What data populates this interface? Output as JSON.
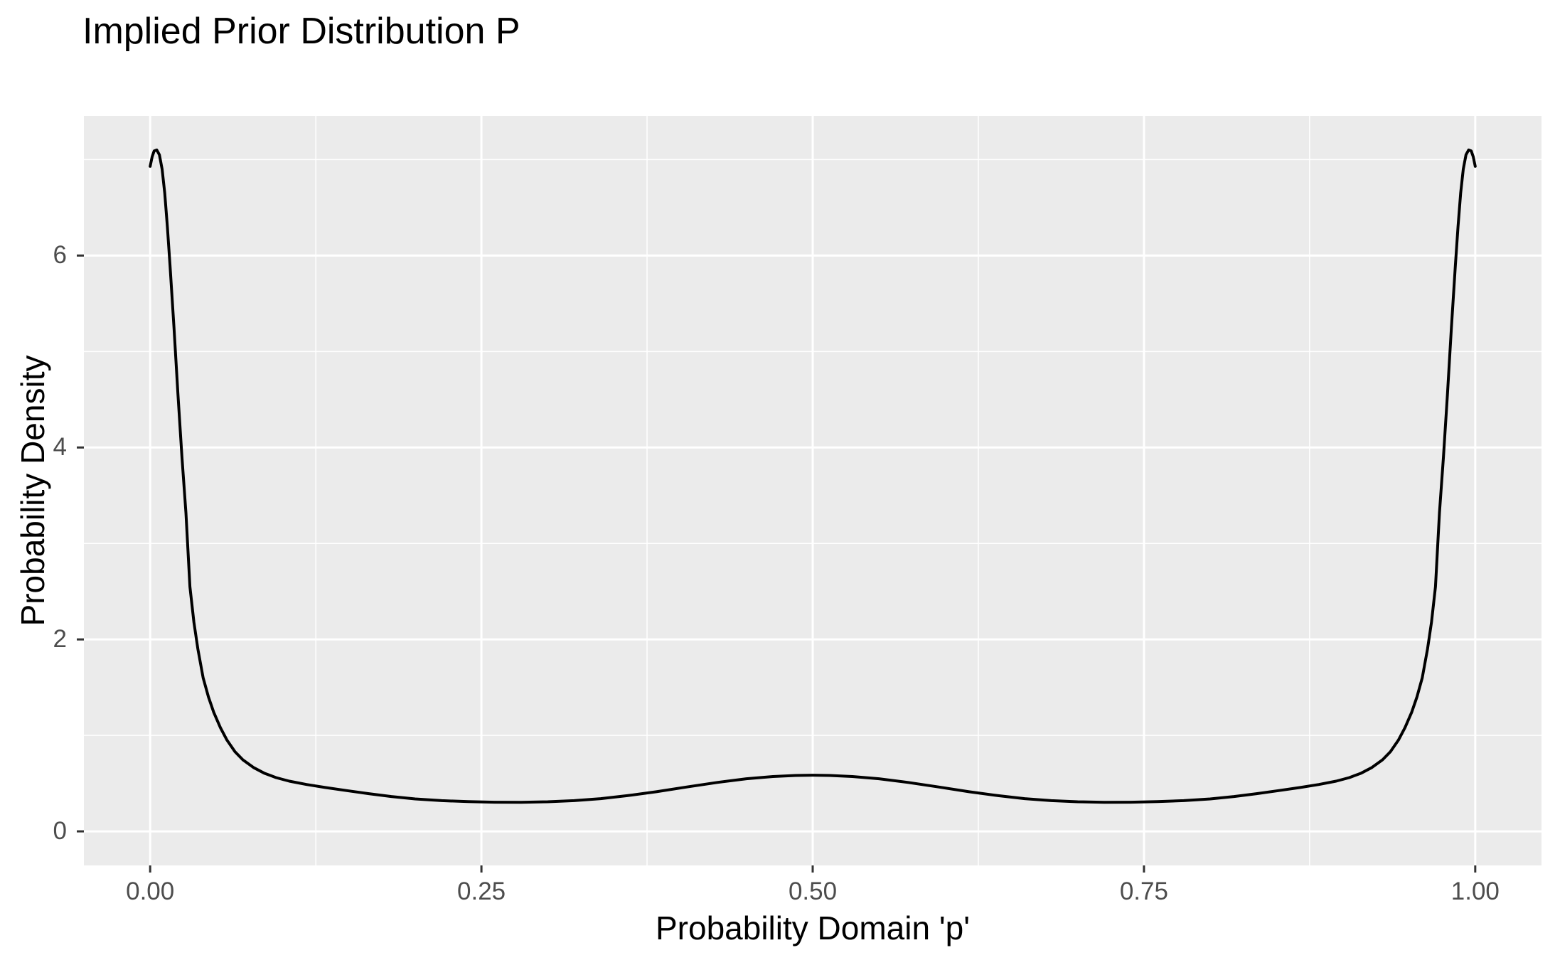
{
  "chart_data": {
    "type": "line",
    "title": "Implied Prior Distribution P",
    "xlabel": "Probability Domain 'p'",
    "ylabel": "Probability Density",
    "xlim": [
      0,
      1
    ],
    "ylim": [
      0,
      7.1
    ],
    "expand_frac": 0.05,
    "grid": true,
    "legend": "none",
    "x_ticks": {
      "values": [
        0,
        0.25,
        0.5,
        0.75,
        1.0
      ],
      "labels": [
        "0.00",
        "0.25",
        "0.50",
        "0.75",
        "1.00"
      ]
    },
    "y_ticks": {
      "values": [
        0,
        2,
        4,
        6
      ],
      "labels": [
        "0",
        "2",
        "4",
        "6"
      ]
    },
    "x_minor": [
      0.125,
      0.375,
      0.625,
      0.875
    ],
    "y_minor": [
      1,
      3,
      5,
      7
    ],
    "colors": {
      "panel_bg": "#EBEBEB",
      "grid": "#FFFFFF",
      "curve": "#000000",
      "tick_text": "#4D4D4D",
      "tick_mark": "#333333",
      "title_text": "#000000"
    },
    "series": [
      {
        "name": "implied_prior_density",
        "x": [
          0.0,
          0.0015,
          0.003,
          0.005,
          0.007,
          0.009,
          0.011,
          0.013,
          0.015,
          0.018,
          0.021,
          0.024,
          0.027,
          0.03,
          0.033,
          0.036,
          0.04,
          0.044,
          0.048,
          0.053,
          0.058,
          0.064,
          0.07,
          0.078,
          0.086,
          0.095,
          0.105,
          0.118,
          0.132,
          0.148,
          0.165,
          0.182,
          0.2,
          0.22,
          0.24,
          0.26,
          0.28,
          0.3,
          0.32,
          0.34,
          0.36,
          0.382,
          0.405,
          0.428,
          0.45,
          0.47,
          0.487,
          0.5,
          0.513,
          0.53,
          0.55,
          0.572,
          0.595,
          0.618,
          0.64,
          0.66,
          0.68,
          0.7,
          0.72,
          0.74,
          0.76,
          0.78,
          0.8,
          0.818,
          0.835,
          0.852,
          0.868,
          0.882,
          0.895,
          0.905,
          0.914,
          0.922,
          0.93,
          0.936,
          0.942,
          0.947,
          0.952,
          0.956,
          0.96,
          0.964,
          0.967,
          0.97,
          0.973,
          0.976,
          0.979,
          0.982,
          0.985,
          0.987,
          0.989,
          0.991,
          0.993,
          0.995,
          0.997,
          0.9985,
          1.0
        ],
        "y": [
          6.93,
          7.03,
          7.09,
          7.1,
          7.05,
          6.9,
          6.65,
          6.3,
          5.9,
          5.25,
          4.55,
          3.9,
          3.32,
          2.55,
          2.18,
          1.9,
          1.6,
          1.4,
          1.24,
          1.08,
          0.95,
          0.83,
          0.745,
          0.665,
          0.607,
          0.56,
          0.523,
          0.488,
          0.457,
          0.425,
          0.393,
          0.363,
          0.338,
          0.32,
          0.31,
          0.304,
          0.303,
          0.308,
          0.32,
          0.341,
          0.372,
          0.413,
          0.462,
          0.51,
          0.548,
          0.571,
          0.582,
          0.585,
          0.582,
          0.571,
          0.548,
          0.51,
          0.462,
          0.413,
          0.372,
          0.341,
          0.32,
          0.308,
          0.303,
          0.304,
          0.31,
          0.32,
          0.338,
          0.363,
          0.393,
          0.425,
          0.457,
          0.488,
          0.523,
          0.56,
          0.607,
          0.665,
          0.745,
          0.83,
          0.95,
          1.08,
          1.24,
          1.4,
          1.6,
          1.9,
          2.18,
          2.55,
          3.32,
          3.9,
          4.55,
          5.25,
          5.9,
          6.3,
          6.65,
          6.9,
          7.05,
          7.1,
          7.09,
          7.03,
          6.93
        ]
      }
    ]
  }
}
